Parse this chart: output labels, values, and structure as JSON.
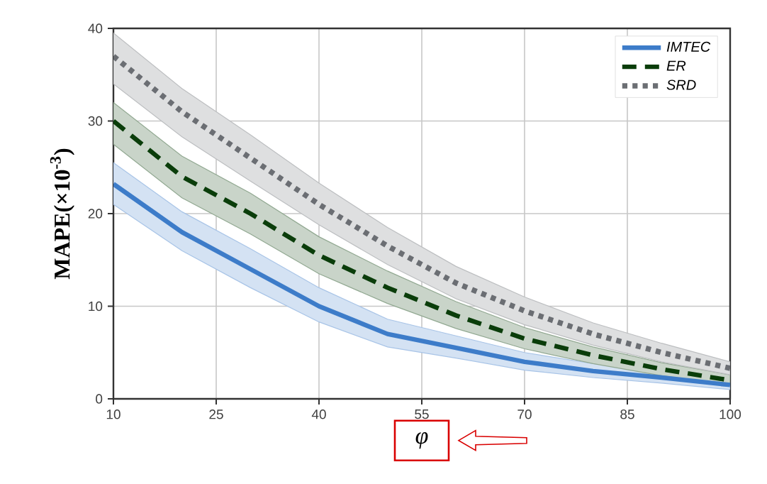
{
  "chart_data": {
    "type": "line",
    "xlabel": "φ",
    "ylabel": "MAPE(×10$^{-3}$)",
    "x": [
      10,
      20,
      30,
      40,
      50,
      60,
      70,
      80,
      90,
      100
    ],
    "xlim": [
      10,
      100
    ],
    "xticks": [
      10,
      25,
      40,
      55,
      70,
      85,
      100
    ],
    "ylim": [
      0,
      40
    ],
    "yticks": [
      0,
      10,
      20,
      30,
      40
    ],
    "grid": true,
    "legend": "top right",
    "series": [
      {
        "name": "IMTEC",
        "color": "#3d7cc9",
        "line_style": "solid",
        "values": [
          23.2,
          18,
          14,
          10,
          7,
          5.5,
          4,
          3,
          2.3,
          1.5
        ],
        "lower": [
          21,
          16,
          12,
          8.3,
          5.6,
          4.4,
          3.1,
          2.3,
          1.7,
          1
        ],
        "upper": [
          25.5,
          20.2,
          16.2,
          12,
          8.6,
          6.8,
          5,
          3.8,
          3,
          2.1
        ]
      },
      {
        "name": "ER",
        "color": "#0a3d0a",
        "line_style": "dashed",
        "values": [
          30,
          24,
          20,
          15.5,
          12,
          9,
          6.5,
          4.7,
          3.2,
          2
        ],
        "lower": [
          27.5,
          21.7,
          17.8,
          13.5,
          10.3,
          7.6,
          5.4,
          3.8,
          2.5,
          1.5
        ],
        "upper": [
          32,
          26.2,
          22.2,
          17.5,
          13.8,
          10.5,
          7.7,
          5.6,
          3.9,
          2.6
        ]
      },
      {
        "name": "SRD",
        "color": "#6b6e73",
        "line_style": "dotted",
        "values": [
          37,
          31,
          26,
          21,
          16.5,
          12.5,
          9.5,
          7,
          5,
          3.3
        ],
        "lower": [
          34,
          28.3,
          23.5,
          18.8,
          14.5,
          10.8,
          8,
          5.8,
          4,
          2.6
        ],
        "upper": [
          39.5,
          33.5,
          28.5,
          23.3,
          18.5,
          14.3,
          11,
          8.2,
          6,
          4
        ]
      }
    ]
  }
}
